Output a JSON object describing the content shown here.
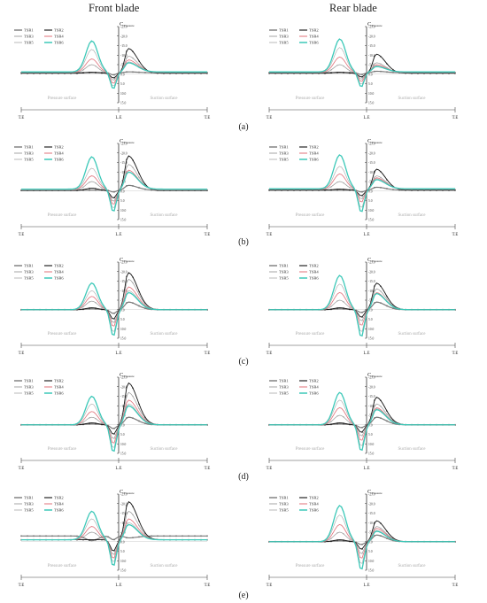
{
  "column_titles": {
    "left": "Front blade",
    "right": "Rear blade"
  },
  "row_labels": [
    "(a)",
    "(b)",
    "(c)",
    "(d)",
    "(e)"
  ],
  "legend": [
    "TSR1",
    "TSR2",
    "TSR3",
    "TSR4",
    "TSR5",
    "TSR6"
  ],
  "panel_text": {
    "y_axis_title": "C",
    "y_axis_subscript": "Pressure",
    "x_labels": [
      "T.E",
      "L.E",
      "T.E"
    ],
    "pressure_label": "Pressure surface",
    "suction_label": "Suction surface"
  },
  "series_colors": [
    "#7a7a7a",
    "#111111",
    "#9a9a9a",
    "#e0707a",
    "#a8a8a8",
    "#3cc8b8"
  ],
  "chart_data": [
    {
      "row": "(a)",
      "col": "Front blade",
      "type": "line",
      "x_range": [
        0,
        1
      ],
      "ylim": [
        15,
        -25
      ],
      "yticks": [
        "-25.0",
        "-20.0",
        "-15.0",
        "-10.0",
        "-5.0",
        "0.0",
        "5.0",
        "10.0",
        "15.0"
      ],
      "series": [
        {
          "name": "TSR1",
          "peak": -0.8,
          "lemin": 1.2,
          "spk": -1.2,
          "te": -0.8
        },
        {
          "name": "TSR2",
          "peak": -1.0,
          "lemin": 2.5,
          "spk": -13.5,
          "te": -0.5
        },
        {
          "name": "TSR3",
          "peak": -5.0,
          "lemin": 4.0,
          "spk": -9.5,
          "te": -0.8
        },
        {
          "name": "TSR4",
          "peak": -8.0,
          "lemin": 6.0,
          "spk": -7.5,
          "te": -1.0
        },
        {
          "name": "TSR5",
          "peak": -13.0,
          "lemin": 7.5,
          "spk": -6.5,
          "te": -1.0
        },
        {
          "name": "TSR6",
          "peak": -17.5,
          "lemin": 9.0,
          "spk": -6.0,
          "te": -1.2
        }
      ]
    },
    {
      "row": "(a)",
      "col": "Rear blade",
      "type": "line",
      "x_range": [
        0,
        1
      ],
      "ylim": [
        15,
        -25
      ],
      "yticks": [
        "-25.0",
        "-20.0",
        "-15.0",
        "-10.0",
        "-5.0",
        "0.0",
        "5.0",
        "10.0",
        "15.0"
      ],
      "series": [
        {
          "name": "TSR1",
          "peak": -0.8,
          "lemin": 1.0,
          "spk": -1.5,
          "te": -0.8
        },
        {
          "name": "TSR2",
          "peak": -1.0,
          "lemin": 2.0,
          "spk": -10.5,
          "te": -0.5
        },
        {
          "name": "TSR3",
          "peak": -5.0,
          "lemin": 3.5,
          "spk": -6.0,
          "te": -0.8
        },
        {
          "name": "TSR4",
          "peak": -9.0,
          "lemin": 5.0,
          "spk": -5.0,
          "te": -1.0
        },
        {
          "name": "TSR5",
          "peak": -14.0,
          "lemin": 6.5,
          "spk": -4.5,
          "te": -1.0
        },
        {
          "name": "TSR6",
          "peak": -18.5,
          "lemin": 8.0,
          "spk": -4.0,
          "te": -1.2
        }
      ]
    },
    {
      "row": "(b)",
      "col": "Front blade",
      "type": "line",
      "x_range": [
        0,
        1
      ],
      "ylim": [
        15,
        -25
      ],
      "yticks": [
        "-25.0",
        "-20.0",
        "-15.0",
        "-10.0",
        "-5.0",
        "0.0",
        "5.0",
        "10.0",
        "15.0"
      ],
      "series": [
        {
          "name": "TSR1",
          "peak": -0.5,
          "lemin": 1.0,
          "spk": -3.0,
          "te": -0.5
        },
        {
          "name": "TSR2",
          "peak": -1.5,
          "lemin": 4.0,
          "spk": -18.5,
          "te": -0.3
        },
        {
          "name": "TSR3",
          "peak": -5.0,
          "lemin": 6.0,
          "spk": -14.0,
          "te": -0.5
        },
        {
          "name": "TSR4",
          "peak": -8.0,
          "lemin": 8.0,
          "spk": -11.0,
          "te": -0.8
        },
        {
          "name": "TSR5",
          "peak": -12.0,
          "lemin": 10.0,
          "spk": -10.0,
          "te": -0.8
        },
        {
          "name": "TSR6",
          "peak": -18.0,
          "lemin": 12.0,
          "spk": -10.0,
          "te": -1.0
        }
      ]
    },
    {
      "row": "(b)",
      "col": "Rear blade",
      "type": "line",
      "x_range": [
        0,
        1
      ],
      "ylim": [
        15,
        -25
      ],
      "yticks": [
        "-25.0",
        "-20.0",
        "-15.0",
        "-10.0",
        "-5.0",
        "0.0",
        "5.0",
        "10.0",
        "15.0"
      ],
      "series": [
        {
          "name": "TSR1",
          "peak": -0.5,
          "lemin": 1.0,
          "spk": -2.0,
          "te": -0.5
        },
        {
          "name": "TSR2",
          "peak": -1.0,
          "lemin": 3.0,
          "spk": -11.5,
          "te": -0.5
        },
        {
          "name": "TSR3",
          "peak": -5.0,
          "lemin": 5.0,
          "spk": -8.0,
          "te": -0.8
        },
        {
          "name": "TSR4",
          "peak": -9.0,
          "lemin": 7.0,
          "spk": -7.0,
          "te": -1.0
        },
        {
          "name": "TSR5",
          "peak": -13.0,
          "lemin": 10.0,
          "spk": -6.5,
          "te": -1.0
        },
        {
          "name": "TSR6",
          "peak": -19.0,
          "lemin": 12.5,
          "spk": -6.0,
          "te": -1.2
        }
      ]
    },
    {
      "row": "(c)",
      "col": "Front blade",
      "type": "line",
      "x_range": [
        0,
        1
      ],
      "ylim": [
        15,
        -25
      ],
      "yticks": [
        "-25.0",
        "-20.0",
        "-15.0",
        "-10.0",
        "-5.0",
        "0.0",
        "5.0",
        "10.0",
        "15.0"
      ],
      "series": [
        {
          "name": "TSR1",
          "peak": -0.5,
          "lemin": 2.0,
          "spk": -4.0,
          "te": 0.0
        },
        {
          "name": "TSR2",
          "peak": -1.0,
          "lemin": 5.0,
          "spk": -19.5,
          "te": 0.0
        },
        {
          "name": "TSR3",
          "peak": -4.5,
          "lemin": 7.0,
          "spk": -16.0,
          "te": 0.0
        },
        {
          "name": "TSR4",
          "peak": -7.0,
          "lemin": 9.0,
          "spk": -12.0,
          "te": 0.0
        },
        {
          "name": "TSR5",
          "peak": -10.0,
          "lemin": 12.0,
          "spk": -10.0,
          "te": 0.0
        },
        {
          "name": "TSR6",
          "peak": -14.0,
          "lemin": 14.0,
          "spk": -9.0,
          "te": 0.0
        }
      ]
    },
    {
      "row": "(c)",
      "col": "Rear blade",
      "type": "line",
      "x_range": [
        0,
        1
      ],
      "ylim": [
        15,
        -25
      ],
      "yticks": [
        "-25.0",
        "-20.0",
        "-15.0",
        "-10.0",
        "-5.0",
        "0.0",
        "5.0",
        "10.0",
        "15.0"
      ],
      "series": [
        {
          "name": "TSR1",
          "peak": -0.5,
          "lemin": 1.5,
          "spk": -4.0,
          "te": 0.0
        },
        {
          "name": "TSR2",
          "peak": -1.0,
          "lemin": 4.0,
          "spk": -14.0,
          "te": 0.0
        },
        {
          "name": "TSR3",
          "peak": -5.0,
          "lemin": 6.0,
          "spk": -11.0,
          "te": 0.0
        },
        {
          "name": "TSR4",
          "peak": -9.0,
          "lemin": 8.5,
          "spk": -9.0,
          "te": 0.0
        },
        {
          "name": "TSR5",
          "peak": -13.5,
          "lemin": 12.0,
          "spk": -8.5,
          "te": 0.0
        },
        {
          "name": "TSR6",
          "peak": -18.0,
          "lemin": 14.5,
          "spk": -8.5,
          "te": 0.0
        }
      ]
    },
    {
      "row": "(d)",
      "col": "Front blade",
      "type": "line",
      "x_range": [
        0,
        1
      ],
      "ylim": [
        15,
        -25
      ],
      "yticks": [
        "-25.0",
        "-20.0",
        "-15.0",
        "-10.0",
        "-5.0",
        "0.0",
        "5.0",
        "10.0",
        "15.0"
      ],
      "series": [
        {
          "name": "TSR1",
          "peak": -0.5,
          "lemin": 2.0,
          "spk": -4.0,
          "te": 0.0
        },
        {
          "name": "TSR2",
          "peak": -1.0,
          "lemin": 5.0,
          "spk": -22.0,
          "te": 0.0
        },
        {
          "name": "TSR3",
          "peak": -4.0,
          "lemin": 7.5,
          "spk": -17.0,
          "te": 0.0
        },
        {
          "name": "TSR4",
          "peak": -7.0,
          "lemin": 10.0,
          "spk": -13.0,
          "te": 0.0
        },
        {
          "name": "TSR5",
          "peak": -11.0,
          "lemin": 12.5,
          "spk": -11.0,
          "te": 0.0
        },
        {
          "name": "TSR6",
          "peak": -15.0,
          "lemin": 14.5,
          "spk": -10.0,
          "te": 0.0
        }
      ]
    },
    {
      "row": "(d)",
      "col": "Rear blade",
      "type": "line",
      "x_range": [
        0,
        1
      ],
      "ylim": [
        15,
        -25
      ],
      "yticks": [
        "-25.0",
        "-20.0",
        "-15.0",
        "-10.0",
        "-5.0",
        "0.0",
        "5.0",
        "10.0",
        "15.0"
      ],
      "series": [
        {
          "name": "TSR1",
          "peak": -0.5,
          "lemin": 1.5,
          "spk": -4.0,
          "te": 0.0
        },
        {
          "name": "TSR2",
          "peak": -1.0,
          "lemin": 4.0,
          "spk": -14.5,
          "te": 0.0
        },
        {
          "name": "TSR3",
          "peak": -5.0,
          "lemin": 6.0,
          "spk": -11.0,
          "te": 0.0
        },
        {
          "name": "TSR4",
          "peak": -9.0,
          "lemin": 8.5,
          "spk": -9.0,
          "te": 0.0
        },
        {
          "name": "TSR5",
          "peak": -13.0,
          "lemin": 11.5,
          "spk": -8.5,
          "te": 0.0
        },
        {
          "name": "TSR6",
          "peak": -17.0,
          "lemin": 14.0,
          "spk": -8.0,
          "te": 0.0
        }
      ]
    },
    {
      "row": "(e)",
      "col": "Front blade",
      "type": "line",
      "x_range": [
        0,
        1
      ],
      "ylim": [
        15,
        -25
      ],
      "yticks": [
        "-25.0",
        "-20.0",
        "-15.0",
        "-10.0",
        "-5.0",
        "0.0",
        "5.0",
        "10.0",
        "15.0"
      ],
      "series": [
        {
          "name": "TSR1",
          "peak": -0.5,
          "lemin": 2.0,
          "spk": -2.0,
          "te": -3.0
        },
        {
          "name": "TSR2",
          "peak": -1.0,
          "lemin": 6.0,
          "spk": -21.0,
          "te": -1.0
        },
        {
          "name": "TSR3",
          "peak": -5.0,
          "lemin": 8.0,
          "spk": -16.0,
          "te": -1.0
        },
        {
          "name": "TSR4",
          "peak": -8.0,
          "lemin": 10.0,
          "spk": -12.0,
          "te": -1.0
        },
        {
          "name": "TSR5",
          "peak": -12.0,
          "lemin": 12.0,
          "spk": -10.0,
          "te": -1.0
        },
        {
          "name": "TSR6",
          "peak": -16.0,
          "lemin": 14.0,
          "spk": -9.0,
          "te": -1.0
        }
      ]
    },
    {
      "row": "(e)",
      "col": "Rear blade",
      "type": "line",
      "x_range": [
        0,
        1
      ],
      "ylim": [
        15,
        -25
      ],
      "yticks": [
        "-25.0",
        "-20.0",
        "-15.0",
        "-10.0",
        "-5.0",
        "0.0",
        "5.0",
        "10.0",
        "15.0"
      ],
      "series": [
        {
          "name": "TSR1",
          "peak": -0.5,
          "lemin": 1.5,
          "spk": -3.5,
          "te": 0.0
        },
        {
          "name": "TSR2",
          "peak": -1.0,
          "lemin": 4.0,
          "spk": -11.0,
          "te": 0.0
        },
        {
          "name": "TSR3",
          "peak": -5.0,
          "lemin": 6.5,
          "spk": -8.0,
          "te": 0.0
        },
        {
          "name": "TSR4",
          "peak": -9.0,
          "lemin": 9.0,
          "spk": -7.0,
          "te": 0.0
        },
        {
          "name": "TSR5",
          "peak": -14.0,
          "lemin": 12.0,
          "spk": -6.0,
          "te": 0.0
        },
        {
          "name": "TSR6",
          "peak": -19.0,
          "lemin": 15.0,
          "spk": -5.5,
          "te": 0.0
        }
      ]
    }
  ]
}
